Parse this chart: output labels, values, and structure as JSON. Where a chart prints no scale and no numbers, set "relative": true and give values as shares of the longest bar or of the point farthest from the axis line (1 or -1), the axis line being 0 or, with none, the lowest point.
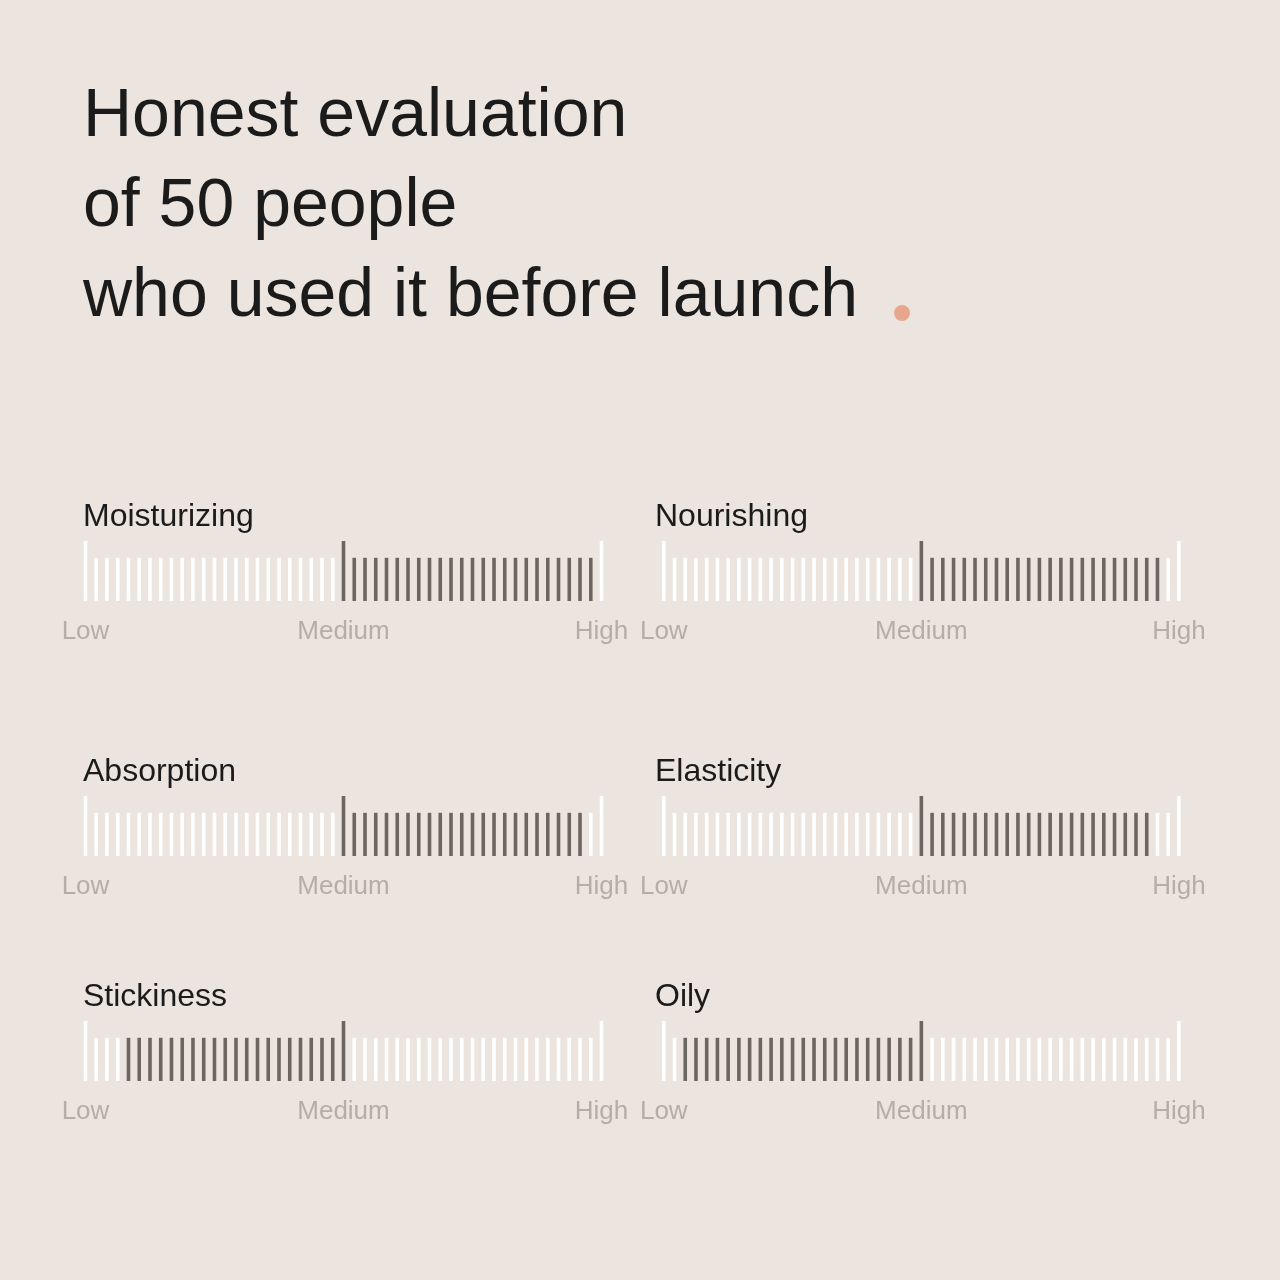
{
  "chart_data": [
    {
      "type": "other",
      "title": "Honest evaluation\nof 50 people\nwho used it before launch"
    },
    {
      "type": "bar",
      "title": "Moisturizing",
      "relative": true,
      "categories": [
        "Low",
        null,
        null,
        null,
        null,
        null,
        null,
        null,
        null,
        null,
        null,
        null,
        null,
        null,
        null,
        null,
        null,
        null,
        null,
        null,
        null,
        null,
        null,
        null,
        "Medium",
        null,
        null,
        null,
        null,
        null,
        null,
        null,
        null,
        null,
        null,
        null,
        null,
        null,
        null,
        null,
        null,
        null,
        null,
        null,
        null,
        null,
        null,
        null,
        "High"
      ],
      "values": [
        1,
        0.72,
        0.72,
        0.72,
        0.72,
        0.72,
        0.72,
        0.72,
        0.72,
        0.72,
        0.72,
        0.72,
        0.72,
        0.72,
        0.72,
        0.72,
        0.72,
        0.72,
        0.72,
        0.72,
        0.72,
        0.72,
        0.72,
        0.72,
        1,
        0.72,
        0.72,
        0.72,
        0.72,
        0.72,
        0.72,
        0.72,
        0.72,
        0.72,
        0.72,
        0.72,
        0.72,
        0.72,
        0.72,
        0.72,
        0.72,
        0.72,
        0.72,
        0.72,
        0.72,
        0.72,
        0.72,
        0.72,
        1
      ],
      "colors": [
        "#ffffff",
        "#ffffff",
        "#ffffff",
        "#ffffff",
        "#ffffff",
        "#ffffff",
        "#ffffff",
        "#ffffff",
        "#ffffff",
        "#ffffff",
        "#ffffff",
        "#ffffff",
        "#ffffff",
        "#ffffff",
        "#ffffff",
        "#ffffff",
        "#ffffff",
        "#ffffff",
        "#ffffff",
        "#ffffff",
        "#ffffff",
        "#ffffff",
        "#ffffff",
        "#ffffff",
        "#6b665f",
        "#6b665f",
        "#6b665f",
        "#6b665f",
        "#6b665f",
        "#6b665f",
        "#6b665f",
        "#6b665f",
        "#6b665f",
        "#6b665f",
        "#6b665f",
        "#6b665f",
        "#6b665f",
        "#6b665f",
        "#6b665f",
        "#6b665f",
        "#6b665f",
        "#6b665f",
        "#6b665f",
        "#6b665f",
        "#6b665f",
        "#6b665f",
        "#6b665f",
        "#6b665f",
        "#ffffff"
      ]
    },
    {
      "type": "bar",
      "title": "Nourishing",
      "relative": true,
      "categories": [
        "Low",
        null,
        null,
        null,
        null,
        null,
        null,
        null,
        null,
        null,
        null,
        null,
        null,
        null,
        null,
        null,
        null,
        null,
        null,
        null,
        null,
        null,
        null,
        null,
        "Medium",
        null,
        null,
        null,
        null,
        null,
        null,
        null,
        null,
        null,
        null,
        null,
        null,
        null,
        null,
        null,
        null,
        null,
        null,
        null,
        null,
        null,
        null,
        null,
        "High"
      ],
      "values": [
        1,
        0.72,
        0.72,
        0.72,
        0.72,
        0.72,
        0.72,
        0.72,
        0.72,
        0.72,
        0.72,
        0.72,
        0.72,
        0.72,
        0.72,
        0.72,
        0.72,
        0.72,
        0.72,
        0.72,
        0.72,
        0.72,
        0.72,
        0.72,
        1,
        0.72,
        0.72,
        0.72,
        0.72,
        0.72,
        0.72,
        0.72,
        0.72,
        0.72,
        0.72,
        0.72,
        0.72,
        0.72,
        0.72,
        0.72,
        0.72,
        0.72,
        0.72,
        0.72,
        0.72,
        0.72,
        0.72,
        0.72,
        1
      ],
      "colors": [
        "#ffffff",
        "#ffffff",
        "#ffffff",
        "#ffffff",
        "#ffffff",
        "#ffffff",
        "#ffffff",
        "#ffffff",
        "#ffffff",
        "#ffffff",
        "#ffffff",
        "#ffffff",
        "#ffffff",
        "#ffffff",
        "#ffffff",
        "#ffffff",
        "#ffffff",
        "#ffffff",
        "#ffffff",
        "#ffffff",
        "#ffffff",
        "#ffffff",
        "#ffffff",
        "#ffffff",
        "#6b665f",
        "#6b665f",
        "#6b665f",
        "#6b665f",
        "#6b665f",
        "#6b665f",
        "#6b665f",
        "#6b665f",
        "#6b665f",
        "#6b665f",
        "#6b665f",
        "#6b665f",
        "#6b665f",
        "#6b665f",
        "#6b665f",
        "#6b665f",
        "#6b665f",
        "#6b665f",
        "#6b665f",
        "#6b665f",
        "#6b665f",
        "#6b665f",
        "#6b665f",
        "#ffffff",
        "#ffffff"
      ]
    },
    {
      "type": "bar",
      "title": "Absorption",
      "relative": true,
      "categories": [
        "Low",
        null,
        null,
        null,
        null,
        null,
        null,
        null,
        null,
        null,
        null,
        null,
        null,
        null,
        null,
        null,
        null,
        null,
        null,
        null,
        null,
        null,
        null,
        null,
        "Medium",
        null,
        null,
        null,
        null,
        null,
        null,
        null,
        null,
        null,
        null,
        null,
        null,
        null,
        null,
        null,
        null,
        null,
        null,
        null,
        null,
        null,
        null,
        null,
        "High"
      ],
      "values": [
        1,
        0.72,
        0.72,
        0.72,
        0.72,
        0.72,
        0.72,
        0.72,
        0.72,
        0.72,
        0.72,
        0.72,
        0.72,
        0.72,
        0.72,
        0.72,
        0.72,
        0.72,
        0.72,
        0.72,
        0.72,
        0.72,
        0.72,
        0.72,
        1,
        0.72,
        0.72,
        0.72,
        0.72,
        0.72,
        0.72,
        0.72,
        0.72,
        0.72,
        0.72,
        0.72,
        0.72,
        0.72,
        0.72,
        0.72,
        0.72,
        0.72,
        0.72,
        0.72,
        0.72,
        0.72,
        0.72,
        0.72,
        1
      ],
      "colors": [
        "#ffffff",
        "#ffffff",
        "#ffffff",
        "#ffffff",
        "#ffffff",
        "#ffffff",
        "#ffffff",
        "#ffffff",
        "#ffffff",
        "#ffffff",
        "#ffffff",
        "#ffffff",
        "#ffffff",
        "#ffffff",
        "#ffffff",
        "#ffffff",
        "#ffffff",
        "#ffffff",
        "#ffffff",
        "#ffffff",
        "#ffffff",
        "#ffffff",
        "#ffffff",
        "#ffffff",
        "#6b665f",
        "#6b665f",
        "#6b665f",
        "#6b665f",
        "#6b665f",
        "#6b665f",
        "#6b665f",
        "#6b665f",
        "#6b665f",
        "#6b665f",
        "#6b665f",
        "#6b665f",
        "#6b665f",
        "#6b665f",
        "#6b665f",
        "#6b665f",
        "#6b665f",
        "#6b665f",
        "#6b665f",
        "#6b665f",
        "#6b665f",
        "#6b665f",
        "#6b665f",
        "#ffffff",
        "#ffffff"
      ]
    },
    {
      "type": "bar",
      "title": "Elasticity",
      "relative": true,
      "categories": [
        "Low",
        null,
        null,
        null,
        null,
        null,
        null,
        null,
        null,
        null,
        null,
        null,
        null,
        null,
        null,
        null,
        null,
        null,
        null,
        null,
        null,
        null,
        null,
        null,
        "Medium",
        null,
        null,
        null,
        null,
        null,
        null,
        null,
        null,
        null,
        null,
        null,
        null,
        null,
        null,
        null,
        null,
        null,
        null,
        null,
        null,
        null,
        null,
        null,
        "High"
      ],
      "values": [
        1,
        0.72,
        0.72,
        0.72,
        0.72,
        0.72,
        0.72,
        0.72,
        0.72,
        0.72,
        0.72,
        0.72,
        0.72,
        0.72,
        0.72,
        0.72,
        0.72,
        0.72,
        0.72,
        0.72,
        0.72,
        0.72,
        0.72,
        0.72,
        1,
        0.72,
        0.72,
        0.72,
        0.72,
        0.72,
        0.72,
        0.72,
        0.72,
        0.72,
        0.72,
        0.72,
        0.72,
        0.72,
        0.72,
        0.72,
        0.72,
        0.72,
        0.72,
        0.72,
        0.72,
        0.72,
        0.72,
        0.72,
        1
      ],
      "colors": [
        "#ffffff",
        "#ffffff",
        "#ffffff",
        "#ffffff",
        "#ffffff",
        "#ffffff",
        "#ffffff",
        "#ffffff",
        "#ffffff",
        "#ffffff",
        "#ffffff",
        "#ffffff",
        "#ffffff",
        "#ffffff",
        "#ffffff",
        "#ffffff",
        "#ffffff",
        "#ffffff",
        "#ffffff",
        "#ffffff",
        "#ffffff",
        "#ffffff",
        "#ffffff",
        "#ffffff",
        "#6b665f",
        "#6b665f",
        "#6b665f",
        "#6b665f",
        "#6b665f",
        "#6b665f",
        "#6b665f",
        "#6b665f",
        "#6b665f",
        "#6b665f",
        "#6b665f",
        "#6b665f",
        "#6b665f",
        "#6b665f",
        "#6b665f",
        "#6b665f",
        "#6b665f",
        "#6b665f",
        "#6b665f",
        "#6b665f",
        "#6b665f",
        "#6b665f",
        "#ffffff",
        "#ffffff",
        "#ffffff"
      ]
    },
    {
      "type": "bar",
      "title": "Stickiness",
      "relative": true,
      "categories": [
        "Low",
        null,
        null,
        null,
        null,
        null,
        null,
        null,
        null,
        null,
        null,
        null,
        null,
        null,
        null,
        null,
        null,
        null,
        null,
        null,
        null,
        null,
        null,
        null,
        "Medium",
        null,
        null,
        null,
        null,
        null,
        null,
        null,
        null,
        null,
        null,
        null,
        null,
        null,
        null,
        null,
        null,
        null,
        null,
        null,
        null,
        null,
        null,
        null,
        "High"
      ],
      "values": [
        1,
        0.72,
        0.72,
        0.72,
        0.72,
        0.72,
        0.72,
        0.72,
        0.72,
        0.72,
        0.72,
        0.72,
        0.72,
        0.72,
        0.72,
        0.72,
        0.72,
        0.72,
        0.72,
        0.72,
        0.72,
        0.72,
        0.72,
        0.72,
        1,
        0.72,
        0.72,
        0.72,
        0.72,
        0.72,
        0.72,
        0.72,
        0.72,
        0.72,
        0.72,
        0.72,
        0.72,
        0.72,
        0.72,
        0.72,
        0.72,
        0.72,
        0.72,
        0.72,
        0.72,
        0.72,
        0.72,
        0.72,
        1
      ],
      "colors": [
        "#ffffff",
        "#ffffff",
        "#ffffff",
        "#ffffff",
        "#6b665f",
        "#6b665f",
        "#6b665f",
        "#6b665f",
        "#6b665f",
        "#6b665f",
        "#6b665f",
        "#6b665f",
        "#6b665f",
        "#6b665f",
        "#6b665f",
        "#6b665f",
        "#6b665f",
        "#6b665f",
        "#6b665f",
        "#6b665f",
        "#6b665f",
        "#6b665f",
        "#6b665f",
        "#6b665f",
        "#6b665f",
        "#ffffff",
        "#ffffff",
        "#ffffff",
        "#ffffff",
        "#ffffff",
        "#ffffff",
        "#ffffff",
        "#ffffff",
        "#ffffff",
        "#ffffff",
        "#ffffff",
        "#ffffff",
        "#ffffff",
        "#ffffff",
        "#ffffff",
        "#ffffff",
        "#ffffff",
        "#ffffff",
        "#ffffff",
        "#ffffff",
        "#ffffff",
        "#ffffff",
        "#ffffff",
        "#ffffff"
      ]
    },
    {
      "type": "bar",
      "title": "Oily",
      "relative": true,
      "categories": [
        "Low",
        null,
        null,
        null,
        null,
        null,
        null,
        null,
        null,
        null,
        null,
        null,
        null,
        null,
        null,
        null,
        null,
        null,
        null,
        null,
        null,
        null,
        null,
        null,
        "Medium",
        null,
        null,
        null,
        null,
        null,
        null,
        null,
        null,
        null,
        null,
        null,
        null,
        null,
        null,
        null,
        null,
        null,
        null,
        null,
        null,
        null,
        null,
        null,
        "High"
      ],
      "values": [
        1,
        0.72,
        0.72,
        0.72,
        0.72,
        0.72,
        0.72,
        0.72,
        0.72,
        0.72,
        0.72,
        0.72,
        0.72,
        0.72,
        0.72,
        0.72,
        0.72,
        0.72,
        0.72,
        0.72,
        0.72,
        0.72,
        0.72,
        0.72,
        1,
        0.72,
        0.72,
        0.72,
        0.72,
        0.72,
        0.72,
        0.72,
        0.72,
        0.72,
        0.72,
        0.72,
        0.72,
        0.72,
        0.72,
        0.72,
        0.72,
        0.72,
        0.72,
        0.72,
        0.72,
        0.72,
        0.72,
        0.72,
        1
      ],
      "colors": [
        "#ffffff",
        "#ffffff",
        "#6b665f",
        "#6b665f",
        "#6b665f",
        "#6b665f",
        "#6b665f",
        "#6b665f",
        "#6b665f",
        "#6b665f",
        "#6b665f",
        "#6b665f",
        "#6b665f",
        "#6b665f",
        "#6b665f",
        "#6b665f",
        "#6b665f",
        "#6b665f",
        "#6b665f",
        "#6b665f",
        "#6b665f",
        "#6b665f",
        "#6b665f",
        "#6b665f",
        "#6b665f",
        "#ffffff",
        "#ffffff",
        "#ffffff",
        "#ffffff",
        "#ffffff",
        "#ffffff",
        "#ffffff",
        "#ffffff",
        "#ffffff",
        "#ffffff",
        "#ffffff",
        "#ffffff",
        "#ffffff",
        "#ffffff",
        "#ffffff",
        "#ffffff",
        "#ffffff",
        "#ffffff",
        "#ffffff",
        "#ffffff",
        "#ffffff",
        "#ffffff",
        "#ffffff",
        "#ffffff"
      ]
    }
  ]
}
